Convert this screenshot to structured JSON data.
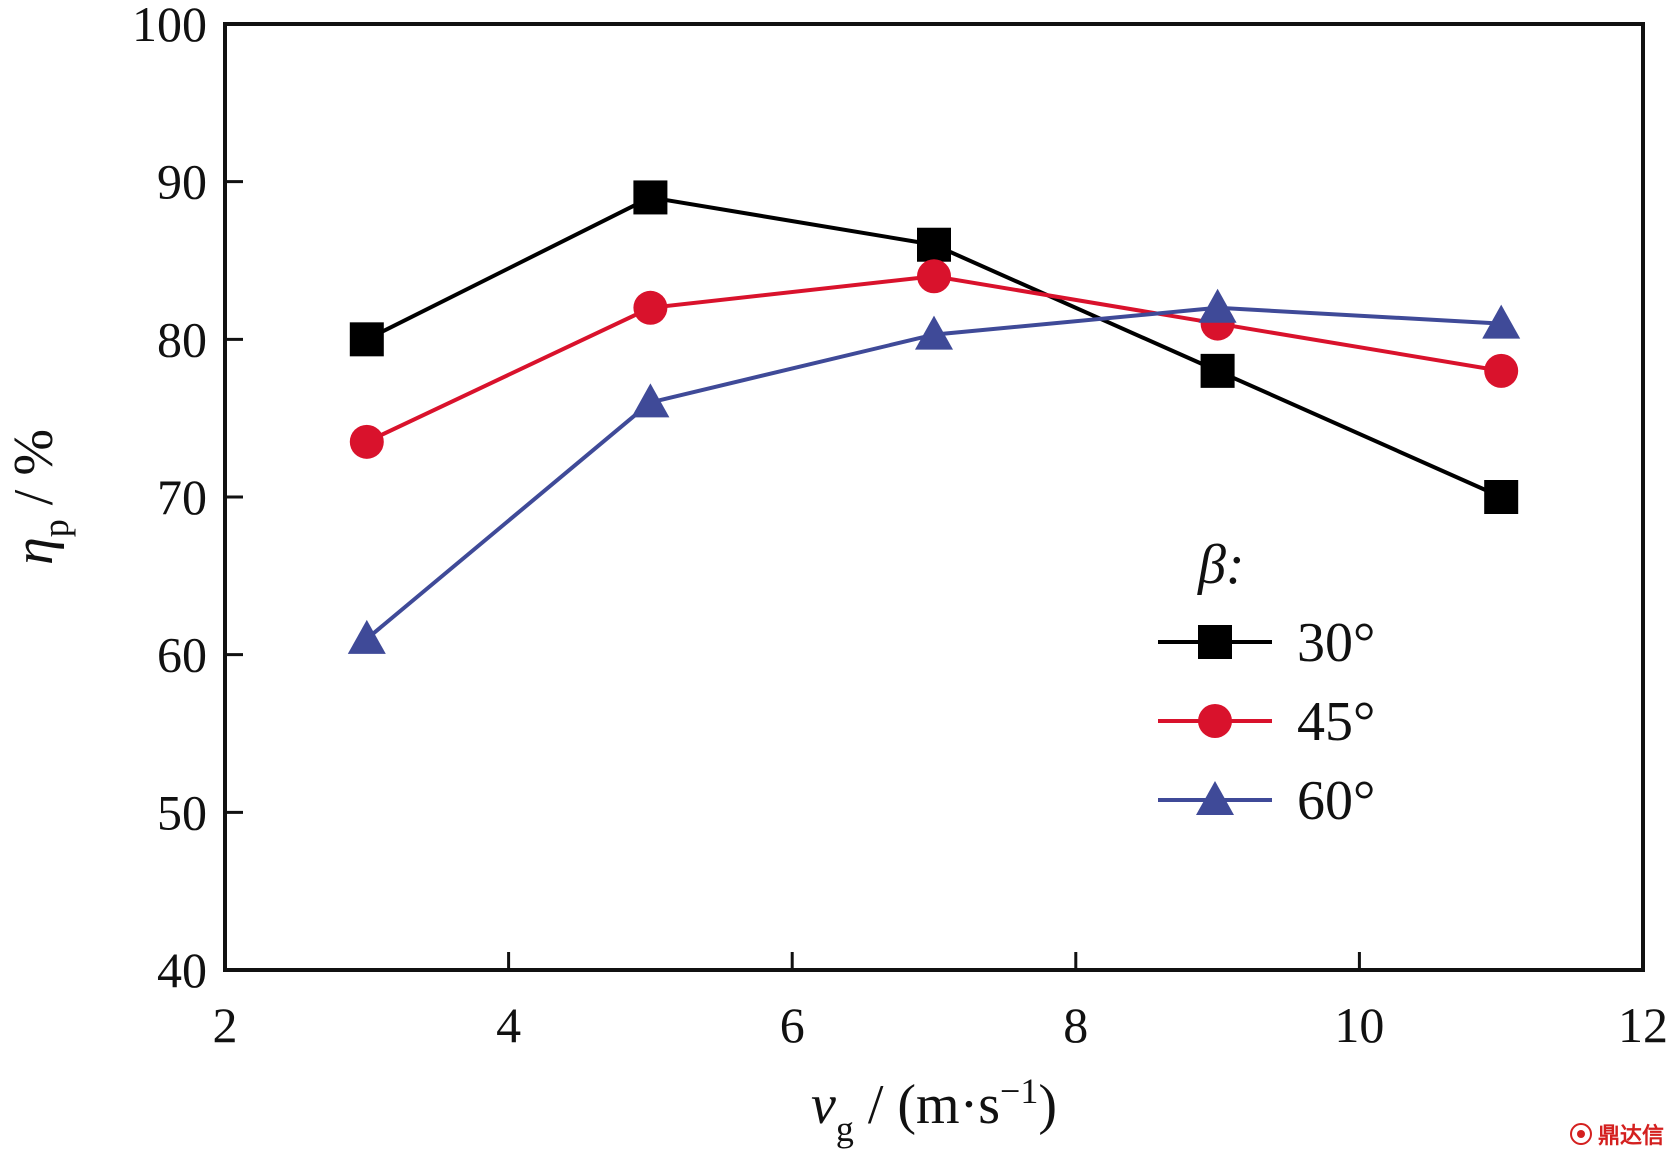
{
  "chart_data": {
    "type": "line",
    "x": [
      3,
      5,
      7,
      9,
      11
    ],
    "xlim": [
      2,
      12
    ],
    "ylim": [
      40,
      100
    ],
    "xticks": [
      "2",
      "4",
      "6",
      "8",
      "10",
      "12"
    ],
    "yticks": [
      "40",
      "50",
      "60",
      "70",
      "80",
      "90",
      "100"
    ],
    "xlabel": {
      "symbol": "v",
      "subscript": "g",
      "unit": " / (m·s",
      "exponent": "−1",
      "close": ")"
    },
    "ylabel": {
      "symbol": "η",
      "subscript": "p",
      "unit": " / %"
    },
    "legend": {
      "title": "β:",
      "position": "right-middle"
    },
    "series": [
      {
        "name": "30°",
        "marker": "square",
        "color": "#000000",
        "values": [
          80,
          89,
          86,
          78,
          70
        ]
      },
      {
        "name": "45°",
        "marker": "circle",
        "color": "#d9122c",
        "values": [
          73.5,
          82,
          84,
          81,
          78
        ]
      },
      {
        "name": "60°",
        "marker": "triangle",
        "color": "#3f4a98",
        "values": [
          61,
          76,
          80.3,
          82,
          81
        ]
      }
    ],
    "grid": false
  },
  "watermark": {
    "text": "鼎达信",
    "icon": "logo-icon"
  }
}
